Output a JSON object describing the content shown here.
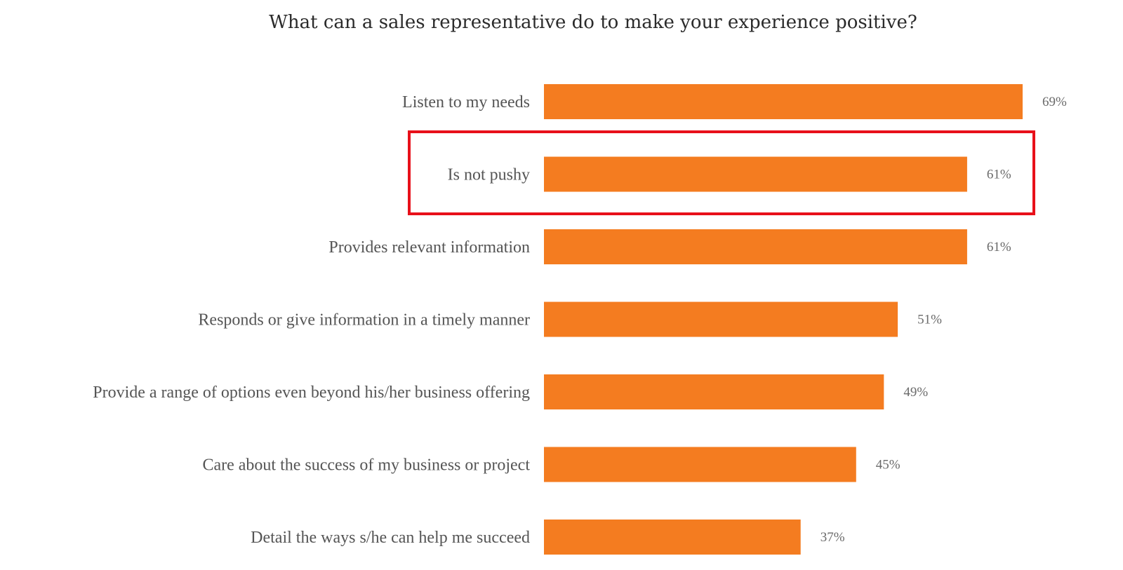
{
  "chart_data": {
    "type": "bar",
    "orientation": "horizontal",
    "title": "What can a sales representative do to make your experience positive?",
    "xlabel": "",
    "ylabel": "",
    "xlim": [
      0,
      100
    ],
    "grid": false,
    "categories": [
      "Listen to my needs",
      "Is not pushy",
      "Provides relevant information",
      "Responds or give information in a timely manner",
      "Provide a range of options even beyond his/her business offering",
      "Care about the success of my business or project",
      "Detail the ways s/he can help me succeed"
    ],
    "values": [
      69,
      61,
      61,
      51,
      49,
      45,
      37
    ],
    "value_labels": [
      "69%",
      "61%",
      "61%",
      "51%",
      "49%",
      "45%",
      "37%"
    ],
    "highlighted_category": "Is not pushy",
    "colors": {
      "bar": "#F47C20",
      "highlight_box": "#E8101A",
      "label_text": "#555555",
      "title_text": "#2B2B2B"
    }
  }
}
